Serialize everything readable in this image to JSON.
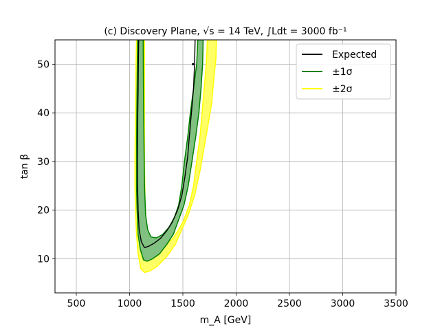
{
  "chart_data": {
    "type": "contour",
    "title": "(c) Discovery Plane, √s = 14 TeV, ∫Ldt = 3000 fb⁻¹",
    "xlabel": "m_A [GeV]",
    "ylabel": "tan β",
    "xlim": [
      300,
      3500
    ],
    "ylim": [
      3,
      55
    ],
    "xticks": [
      500,
      1000,
      1500,
      2000,
      2500,
      3000,
      3500
    ],
    "yticks": [
      10,
      20,
      30,
      40,
      50
    ],
    "grid": true,
    "legend_position": "top-right",
    "legend": [
      {
        "label": "Expected",
        "color": "#000000"
      },
      {
        "label": "±1σ",
        "color": "#008000"
      },
      {
        "label": "±2σ",
        "color": "#ffff00"
      }
    ],
    "bands": {
      "sigma2_outer": {
        "color": "#ffff00",
        "fill": "#ffff66",
        "points": [
          [
            1065,
            55
          ],
          [
            1060,
            50
          ],
          [
            1055,
            40
          ],
          [
            1050,
            30
          ],
          [
            1050,
            25
          ],
          [
            1055,
            20
          ],
          [
            1065,
            15
          ],
          [
            1080,
            11
          ],
          [
            1105,
            8
          ],
          [
            1140,
            7.2
          ],
          [
            1190,
            7.5
          ],
          [
            1260,
            8.5
          ],
          [
            1350,
            10.5
          ],
          [
            1430,
            13
          ],
          [
            1490,
            16
          ],
          [
            1550,
            19
          ],
          [
            1610,
            23
          ],
          [
            1660,
            28
          ],
          [
            1700,
            33
          ],
          [
            1740,
            38
          ],
          [
            1770,
            42
          ],
          [
            1790,
            47
          ],
          [
            1810,
            51
          ],
          [
            1815,
            55
          ],
          [
            1730,
            55
          ],
          [
            1720,
            50
          ],
          [
            1700,
            45
          ],
          [
            1680,
            40
          ],
          [
            1660,
            35
          ],
          [
            1630,
            30
          ],
          [
            1600,
            25
          ],
          [
            1560,
            21
          ],
          [
            1510,
            18
          ],
          [
            1460,
            16
          ],
          [
            1400,
            14
          ],
          [
            1330,
            13
          ],
          [
            1260,
            12.5
          ],
          [
            1210,
            12.8
          ],
          [
            1175,
            14
          ],
          [
            1155,
            17
          ],
          [
            1145,
            22
          ],
          [
            1140,
            30
          ],
          [
            1140,
            40
          ],
          [
            1140,
            50
          ],
          [
            1140,
            55
          ]
        ]
      },
      "sigma1_outer": {
        "color": "#008000",
        "fill": "#80c080",
        "points": [
          [
            1075,
            55
          ],
          [
            1072,
            50
          ],
          [
            1068,
            40
          ],
          [
            1065,
            30
          ],
          [
            1065,
            25
          ],
          [
            1070,
            20
          ],
          [
            1080,
            15
          ],
          [
            1100,
            12
          ],
          [
            1130,
            9.8
          ],
          [
            1165,
            9.5
          ],
          [
            1215,
            10
          ],
          [
            1280,
            11
          ],
          [
            1350,
            13
          ],
          [
            1410,
            15
          ],
          [
            1460,
            18
          ],
          [
            1510,
            21
          ],
          [
            1550,
            25
          ],
          [
            1585,
            30
          ],
          [
            1620,
            35
          ],
          [
            1650,
            40
          ],
          [
            1670,
            45
          ],
          [
            1685,
            50
          ],
          [
            1690,
            55
          ],
          [
            1640,
            55
          ],
          [
            1630,
            50
          ],
          [
            1600,
            45
          ],
          [
            1570,
            40
          ],
          [
            1545,
            35
          ],
          [
            1515,
            30
          ],
          [
            1490,
            25
          ],
          [
            1460,
            21
          ],
          [
            1420,
            18.5
          ],
          [
            1370,
            16.5
          ],
          [
            1310,
            15
          ],
          [
            1250,
            14.3
          ],
          [
            1200,
            14.5
          ],
          [
            1170,
            16
          ],
          [
            1150,
            19
          ],
          [
            1140,
            25
          ],
          [
            1135,
            35
          ],
          [
            1130,
            45
          ],
          [
            1128,
            55
          ]
        ]
      }
    },
    "expected_segments": [
      [
        [
          1085,
          55
        ],
        [
          1082,
          50
        ],
        [
          1080,
          45
        ],
        [
          1077,
          40
        ],
        [
          1075,
          35
        ],
        [
          1073,
          30
        ],
        [
          1075,
          25
        ],
        [
          1080,
          20
        ],
        [
          1090,
          16
        ],
        [
          1110,
          13.5
        ],
        [
          1140,
          12.3
        ],
        [
          1180,
          12.6
        ],
        [
          1230,
          13.2
        ],
        [
          1290,
          14.2
        ],
        [
          1350,
          15.8
        ],
        [
          1400,
          17.5
        ],
        [
          1450,
          20
        ],
        [
          1490,
          23
        ],
        [
          1520,
          27
        ],
        [
          1545,
          31
        ],
        [
          1560,
          35
        ],
        [
          1580,
          40
        ],
        [
          1600,
          45
        ],
        [
          1610,
          50
        ],
        [
          1615,
          55
        ]
      ]
    ],
    "expected_markers": [
      [
        1595,
        50
      ]
    ]
  }
}
